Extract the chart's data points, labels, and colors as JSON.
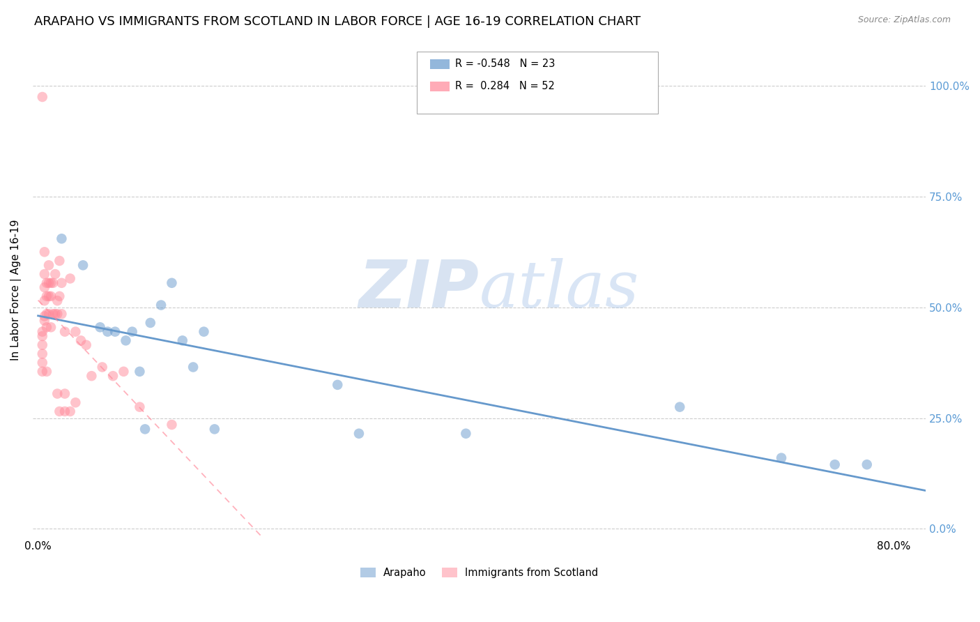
{
  "title": "ARAPAHO VS IMMIGRANTS FROM SCOTLAND IN LABOR FORCE | AGE 16-19 CORRELATION CHART",
  "source": "Source: ZipAtlas.com",
  "ylabel": "In Labor Force | Age 16-19",
  "arapaho_color": "#6699CC",
  "scotland_color": "#FF8899",
  "arapaho_R": -0.548,
  "arapaho_N": 23,
  "scotland_R": 0.284,
  "scotland_N": 52,
  "watermark_zip": "ZIP",
  "watermark_atlas": "atlas",
  "xmin": -0.005,
  "xmax": 0.83,
  "ymin": -0.02,
  "ymax": 1.1,
  "arapaho_x": [
    0.022,
    0.042,
    0.058,
    0.065,
    0.072,
    0.082,
    0.088,
    0.095,
    0.1,
    0.105,
    0.115,
    0.125,
    0.135,
    0.145,
    0.155,
    0.165,
    0.28,
    0.3,
    0.4,
    0.6,
    0.695,
    0.745,
    0.775
  ],
  "arapaho_y": [
    0.655,
    0.595,
    0.455,
    0.445,
    0.445,
    0.425,
    0.445,
    0.355,
    0.225,
    0.465,
    0.505,
    0.555,
    0.425,
    0.365,
    0.445,
    0.225,
    0.325,
    0.215,
    0.215,
    0.275,
    0.16,
    0.145,
    0.145
  ],
  "scotland_x": [
    0.004,
    0.004,
    0.004,
    0.004,
    0.004,
    0.004,
    0.004,
    0.006,
    0.006,
    0.006,
    0.006,
    0.006,
    0.006,
    0.008,
    0.008,
    0.008,
    0.008,
    0.008,
    0.01,
    0.01,
    0.01,
    0.01,
    0.012,
    0.012,
    0.012,
    0.014,
    0.014,
    0.016,
    0.016,
    0.018,
    0.018,
    0.018,
    0.02,
    0.02,
    0.02,
    0.022,
    0.022,
    0.025,
    0.025,
    0.025,
    0.03,
    0.03,
    0.035,
    0.035,
    0.04,
    0.045,
    0.05,
    0.06,
    0.07,
    0.08,
    0.095,
    0.125
  ],
  "scotland_y": [
    0.975,
    0.445,
    0.435,
    0.415,
    0.395,
    0.375,
    0.355,
    0.625,
    0.575,
    0.545,
    0.515,
    0.48,
    0.47,
    0.555,
    0.525,
    0.485,
    0.455,
    0.355,
    0.595,
    0.555,
    0.525,
    0.485,
    0.555,
    0.525,
    0.455,
    0.555,
    0.485,
    0.575,
    0.485,
    0.515,
    0.485,
    0.305,
    0.605,
    0.525,
    0.265,
    0.555,
    0.485,
    0.445,
    0.305,
    0.265,
    0.565,
    0.265,
    0.445,
    0.285,
    0.425,
    0.415,
    0.345,
    0.365,
    0.345,
    0.355,
    0.275,
    0.235
  ],
  "yticks": [
    0.0,
    0.25,
    0.5,
    0.75,
    1.0
  ],
  "ytick_labels_right": [
    "0.0%",
    "25.0%",
    "50.0%",
    "75.0%",
    "100.0%"
  ],
  "xtick_positions": [
    0.0,
    0.8
  ],
  "xtick_labels": [
    "0.0%",
    "80.0%"
  ],
  "grid_color": "#CCCCCC",
  "background_color": "#FFFFFF",
  "title_fontsize": 13,
  "axis_label_fontsize": 11,
  "tick_fontsize": 11,
  "right_tick_color": "#5B9BD5"
}
